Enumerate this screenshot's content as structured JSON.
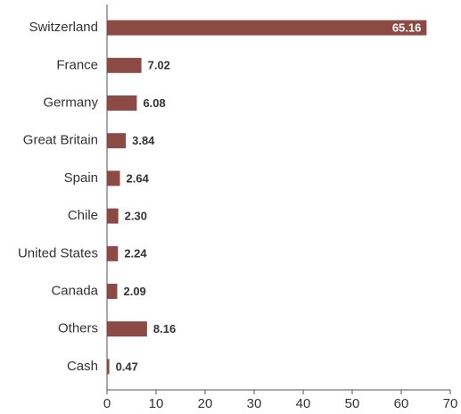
{
  "chart_data": {
    "type": "bar",
    "orientation": "horizontal",
    "categories": [
      "Switzerland",
      "France",
      "Germany",
      "Great Britain",
      "Spain",
      "Chile",
      "United States",
      "Canada",
      "Others",
      "Cash"
    ],
    "values": [
      65.16,
      7.02,
      6.08,
      3.84,
      2.64,
      2.3,
      2.24,
      2.09,
      8.16,
      0.47
    ],
    "value_labels": [
      "65.16",
      "7.02",
      "6.08",
      "3.84",
      "2.64",
      "2.30",
      "2.24",
      "2.09",
      "8.16",
      "0.47"
    ],
    "color": "#8b4a43",
    "xlim": [
      0,
      70
    ],
    "xticks": [
      0,
      10,
      20,
      30,
      40,
      50,
      60,
      70
    ],
    "grid": false
  }
}
